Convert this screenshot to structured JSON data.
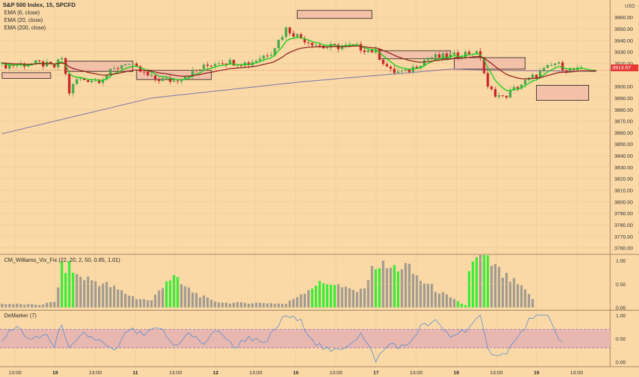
{
  "title": "S&P 500 Index, 15, SPCFD",
  "currency": "USD",
  "indicators_main": [
    "EMA (6, close)",
    "EMA (20, close)",
    "EMA (200, close)"
  ],
  "price_tag": "3913.97",
  "panel2_label": "CM_Williams_Vix_Fix (22, 20, 2, 50, 0.85, 1.01)",
  "panel3_label": "DeMarker (7)",
  "colors": {
    "background": "#fbd9a6",
    "ema6": "#22cc22",
    "ema20": "#8b1a1a",
    "ema200": "#6f6fa8",
    "up": "#4aa84a",
    "down": "#c62828",
    "boxFill": "#f3c0a8",
    "vixGrey": "#a09a90",
    "vixGreen": "#33ee33",
    "demarker": "#4a8ad4",
    "demBand": "#e8b8b0"
  },
  "chart_data": [
    {
      "type": "candlestick",
      "title": "S&P 500 Index, 15, SPCFD",
      "ylim": [
        3755,
        3975
      ],
      "y_ticks": [
        3760,
        3770,
        3780,
        3790,
        3800,
        3810,
        3820,
        3830,
        3840,
        3850,
        3860,
        3870,
        3880,
        3890,
        3900,
        3910,
        3920,
        3930,
        3940,
        3950,
        3960
      ],
      "y_tick_labels": [
        "3760.00",
        "3770.00",
        "3780.00",
        "3790.00",
        "3800.00",
        "3810.00",
        "3820.00",
        "3830.00",
        "3840.00",
        "3850.00",
        "3860.00",
        "3870.00",
        "3880.00",
        "3890.00",
        "3900.00",
        "3910.00",
        "3920.00",
        "3930.00",
        "3940.00",
        "3950.00",
        "3960.00"
      ],
      "x_labels": [
        "13:00",
        "18",
        "13:00",
        "11",
        "13:00",
        "12",
        "13:00",
        "16",
        "13:00",
        "17",
        "13:00",
        "18",
        "13:00",
        "19",
        "13:00"
      ],
      "last_price": 3913.97,
      "price_anchors": [
        [
          0,
          3918
        ],
        [
          10,
          3920
        ],
        [
          14,
          3917
        ],
        [
          16,
          3925
        ],
        [
          18,
          3895
        ],
        [
          20,
          3906
        ],
        [
          26,
          3906
        ],
        [
          33,
          3921
        ],
        [
          40,
          3907
        ],
        [
          46,
          3905
        ],
        [
          52,
          3914
        ],
        [
          58,
          3922
        ],
        [
          66,
          3920
        ],
        [
          72,
          3930
        ],
        [
          76,
          3950
        ],
        [
          80,
          3942
        ],
        [
          86,
          3934
        ],
        [
          94,
          3935
        ],
        [
          100,
          3930
        ],
        [
          104,
          3913
        ],
        [
          108,
          3912
        ],
        [
          114,
          3925
        ],
        [
          120,
          3926
        ],
        [
          126,
          3930
        ],
        [
          128,
          3926
        ],
        [
          130,
          3898
        ],
        [
          134,
          3890
        ],
        [
          138,
          3900
        ],
        [
          142,
          3908
        ],
        [
          148,
          3920
        ],
        [
          152,
          3914
        ]
      ],
      "series": [
        {
          "name": "EMA (6, close)",
          "color": "#22cc22",
          "span": 6
        },
        {
          "name": "EMA (20, close)",
          "color": "#8b1a1a",
          "span": 20
        },
        {
          "name": "EMA (200, close)",
          "color": "#6f6fa8",
          "points": [
            [
              0,
              3859
            ],
            [
              40,
              3890
            ],
            [
              80,
              3904
            ],
            [
              120,
              3915
            ],
            [
              132,
              3914
            ],
            [
              160,
              3913
            ]
          ]
        }
      ],
      "zones": [
        {
          "x": [
            0,
            13
          ],
          "y": [
            3907,
            3912
          ]
        },
        {
          "x": [
            17,
            35
          ],
          "y": [
            3913,
            3922
          ]
        },
        {
          "x": [
            36,
            56
          ],
          "y": [
            3906,
            3914
          ]
        },
        {
          "x": [
            79,
            99
          ],
          "y": [
            3959,
            3966
          ]
        },
        {
          "x": [
            101,
            120
          ],
          "y": [
            3924,
            3931
          ]
        },
        {
          "x": [
            121,
            140
          ],
          "y": [
            3915,
            3925
          ]
        },
        {
          "x": [
            143,
            157
          ],
          "y": [
            3888,
            3901
          ]
        }
      ]
    },
    {
      "type": "bar",
      "title": "CM_Williams_Vix_Fix (22, 20, 2, 50, 0.85, 1.01)",
      "ylim": [
        -0.05,
        1.12
      ],
      "y_ticks": [
        0,
        0.5,
        1
      ],
      "y_tick_labels": [
        "0.00",
        "0.50",
        "1.00"
      ],
      "value_anchors": [
        [
          0,
          0.08
        ],
        [
          10,
          0.06
        ],
        [
          14,
          0.12
        ],
        [
          16,
          0.85
        ],
        [
          18,
          0.9
        ],
        [
          20,
          0.7
        ],
        [
          24,
          0.6
        ],
        [
          28,
          0.5
        ],
        [
          32,
          0.35
        ],
        [
          36,
          0.2
        ],
        [
          40,
          0.15
        ],
        [
          44,
          0.6
        ],
        [
          46,
          0.65
        ],
        [
          48,
          0.5
        ],
        [
          52,
          0.3
        ],
        [
          56,
          0.15
        ],
        [
          60,
          0.1
        ],
        [
          70,
          0.1
        ],
        [
          76,
          0.08
        ],
        [
          80,
          0.3
        ],
        [
          84,
          0.5
        ],
        [
          88,
          0.55
        ],
        [
          92,
          0.4
        ],
        [
          96,
          0.35
        ],
        [
          100,
          0.95
        ],
        [
          104,
          0.85
        ],
        [
          108,
          0.9
        ],
        [
          112,
          0.6
        ],
        [
          116,
          0.4
        ],
        [
          120,
          0.2
        ],
        [
          124,
          0.05
        ],
        [
          125,
          0.85
        ],
        [
          128,
          1.1
        ],
        [
          131,
          0.95
        ],
        [
          134,
          0.7
        ],
        [
          138,
          0.5
        ],
        [
          142,
          0.2
        ],
        [
          144,
          0.1
        ]
      ],
      "green_bars": [
        [
          16,
          19
        ],
        [
          44,
          47
        ],
        [
          83,
          89
        ],
        [
          100,
          101
        ],
        [
          105,
          106
        ],
        [
          122,
          127
        ],
        [
          129,
          130
        ]
      ]
    },
    {
      "type": "line",
      "title": "DeMarker (7)",
      "ylim": [
        -0.1,
        1.1
      ],
      "y_ticks": [
        0,
        0.5,
        1
      ],
      "y_tick_labels": [
        "0.00",
        "0.50",
        "1.00"
      ],
      "band": [
        0.3,
        0.7
      ],
      "series": [
        {
          "name": "DeMarker (7)",
          "values_anchors": [
            [
              0,
              0.5
            ],
            [
              4,
              0.75
            ],
            [
              8,
              0.45
            ],
            [
              12,
              0.6
            ],
            [
              14,
              0.3
            ],
            [
              16,
              0.85
            ],
            [
              18,
              0.25
            ],
            [
              22,
              0.6
            ],
            [
              26,
              0.45
            ],
            [
              30,
              0.2
            ],
            [
              34,
              0.7
            ],
            [
              38,
              0.55
            ],
            [
              42,
              0.75
            ],
            [
              46,
              0.35
            ],
            [
              50,
              0.6
            ],
            [
              54,
              0.4
            ],
            [
              58,
              0.7
            ],
            [
              62,
              0.3
            ],
            [
              66,
              0.55
            ],
            [
              70,
              0.35
            ],
            [
              74,
              0.8
            ],
            [
              76,
              1.0
            ],
            [
              80,
              0.85
            ],
            [
              84,
              0.4
            ],
            [
              88,
              0.2
            ],
            [
              92,
              0.35
            ],
            [
              96,
              0.6
            ],
            [
              100,
              0.05
            ],
            [
              104,
              0.4
            ],
            [
              108,
              0.3
            ],
            [
              112,
              0.75
            ],
            [
              116,
              0.85
            ],
            [
              120,
              0.55
            ],
            [
              124,
              0.7
            ],
            [
              128,
              0.95
            ],
            [
              130,
              0.25
            ],
            [
              134,
              0.15
            ],
            [
              138,
              0.5
            ],
            [
              142,
              1.0
            ],
            [
              146,
              0.95
            ],
            [
              150,
              0.4
            ]
          ]
        }
      ]
    }
  ]
}
